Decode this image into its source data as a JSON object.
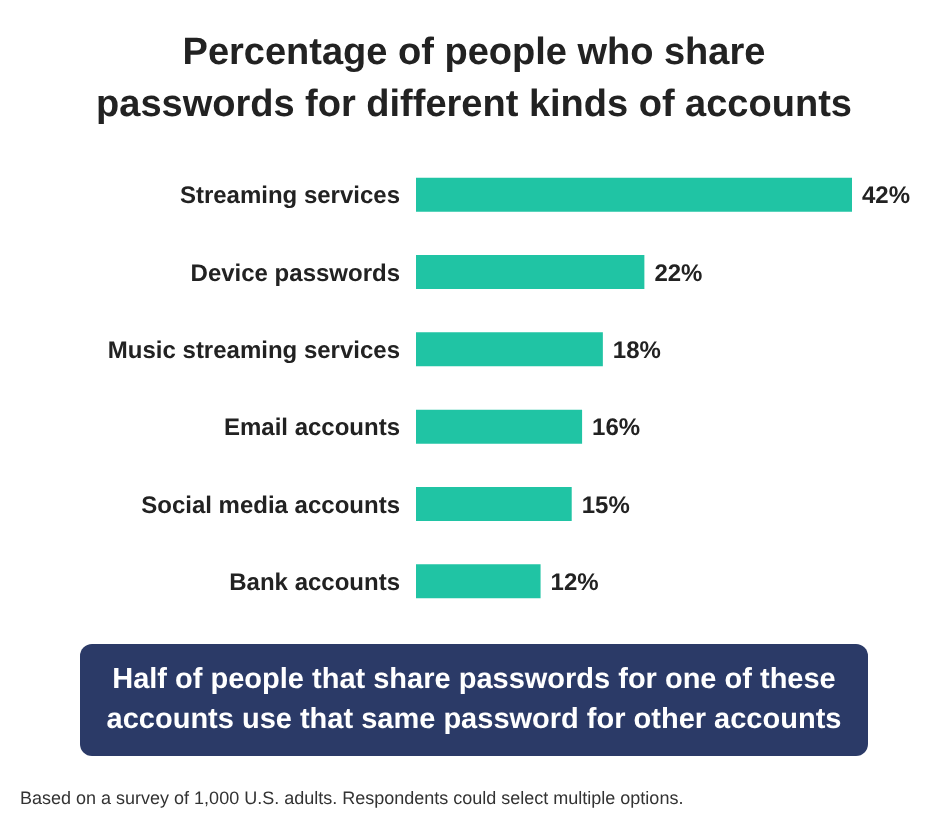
{
  "chart_data": {
    "type": "bar",
    "orientation": "horizontal",
    "title": "Percentage of people who share passwords for different kinds of accounts",
    "categories": [
      "Streaming services",
      "Device passwords",
      "Music streaming services",
      "Email accounts",
      "Social media accounts",
      "Bank accounts"
    ],
    "values": [
      42,
      22,
      18,
      16,
      15,
      12
    ],
    "value_labels": [
      "42%",
      "22%",
      "18%",
      "16%",
      "15%",
      "12%"
    ],
    "color": "#20c4a4",
    "grid": false,
    "legend": false,
    "annotations": [
      "Half of people that share passwords for one of these accounts use that same password for other accounts",
      "Based on a survey of 1,000 U.S. adults. Respondents could select multiple options."
    ]
  }
}
